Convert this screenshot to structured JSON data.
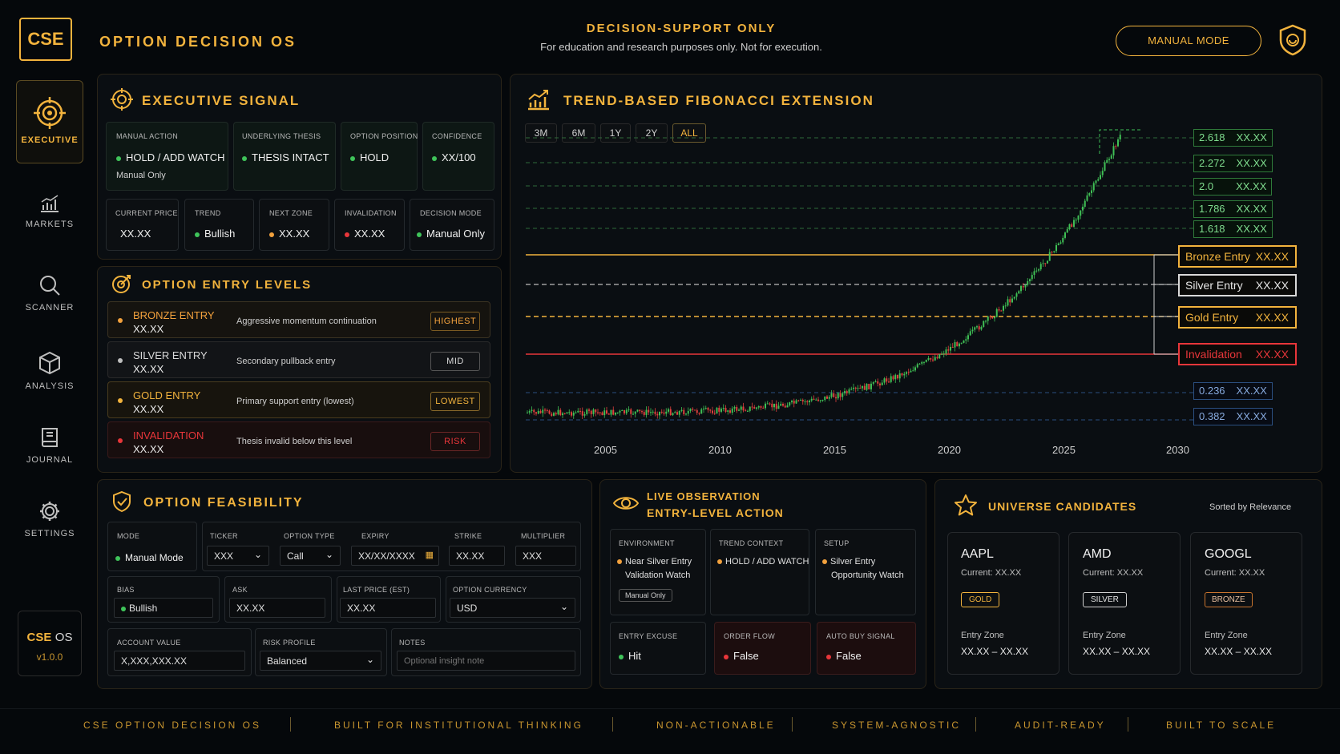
{
  "header": {
    "logo": "CSE",
    "app_title": "OPTION DECISION OS",
    "banner_title": "DECISION-SUPPORT ONLY",
    "banner_sub": "For education and research purposes only. Not for execution.",
    "mode_button": "MANUAL MODE"
  },
  "sidebar": {
    "items": [
      {
        "label": "EXECUTIVE",
        "icon": "target-icon"
      },
      {
        "label": "MARKETS",
        "icon": "bar-chart-icon"
      },
      {
        "label": "SCANNER",
        "icon": "search-icon"
      },
      {
        "label": "ANALYSIS",
        "icon": "cube-icon"
      },
      {
        "label": "JOURNAL",
        "icon": "book-icon"
      },
      {
        "label": "SETTINGS",
        "icon": "gear-icon"
      }
    ],
    "brand": "CSE",
    "brand_os": "OS",
    "version": "v1.0.0"
  },
  "executive": {
    "title": "EXECUTIVE SIGNAL",
    "manual_action": {
      "label": "MANUAL ACTION",
      "value": "HOLD / ADD WATCH",
      "sub": "Manual Only"
    },
    "thesis": {
      "label": "UNDERLYING THESIS",
      "value": "THESIS INTACT"
    },
    "position": {
      "label": "OPTION POSITION",
      "value": "HOLD"
    },
    "confidence": {
      "label": "CONFIDENCE",
      "value": "XX/100"
    },
    "current_price": {
      "label": "CURRENT PRICE",
      "value": "XX.XX"
    },
    "trend": {
      "label": "TREND",
      "value": "Bullish"
    },
    "next_zone": {
      "label": "NEXT ZONE",
      "value": "XX.XX"
    },
    "invalidation": {
      "label": "INVALIDATION",
      "value": "XX.XX"
    },
    "decision_mode": {
      "label": "DECISION MODE",
      "value": "Manual Only"
    }
  },
  "entry_levels": {
    "title": "OPTION ENTRY LEVELS",
    "items": [
      {
        "name": "BRONZE ENTRY",
        "value": "XX.XX",
        "desc": "Aggressive momentum continuation",
        "badge": "HIGHEST",
        "color": "#f2a13d"
      },
      {
        "name": "SILVER ENTRY",
        "value": "XX.XX",
        "desc": "Secondary pullback entry",
        "badge": "MID",
        "color": "#d9d9d9"
      },
      {
        "name": "GOLD ENTRY",
        "value": "XX.XX",
        "desc": "Primary support entry (lowest)",
        "badge": "LOWEST",
        "color": "#f2b33d"
      },
      {
        "name": "INVALIDATION",
        "value": "XX.XX",
        "desc": "Thesis invalid below this level",
        "badge": "RISK",
        "color": "#e8363a"
      }
    ]
  },
  "chart": {
    "title": "TREND-BASED FIBONACCI EXTENSION",
    "timeframes": [
      "3M",
      "6M",
      "1Y",
      "2Y",
      "ALL"
    ],
    "active_timeframe": "ALL",
    "fib_levels": [
      {
        "ratio": "2.618",
        "value": "XX.XX"
      },
      {
        "ratio": "2.272",
        "value": "XX.XX"
      },
      {
        "ratio": "2.0",
        "value": "XX.XX"
      },
      {
        "ratio": "1.786",
        "value": "XX.XX"
      },
      {
        "ratio": "1.618",
        "value": "XX.XX"
      },
      {
        "ratio": "0.236",
        "value": "XX.XX"
      },
      {
        "ratio": "0.382",
        "value": "XX.XX"
      }
    ],
    "entry_levels": [
      {
        "name": "Bronze Entry",
        "value": "XX.XX"
      },
      {
        "name": "Silver Entry",
        "value": "XX.XX"
      },
      {
        "name": "Gold Entry",
        "value": "XX.XX"
      },
      {
        "name": "Invalidation",
        "value": "XX.XX"
      }
    ],
    "x_ticks": [
      "2005",
      "2010",
      "2015",
      "2020",
      "2025",
      "2030"
    ]
  },
  "feasibility": {
    "title": "OPTION FEASIBILITY",
    "mode": {
      "label": "MODE",
      "value": "Manual Mode"
    },
    "ticker": {
      "label": "TICKER",
      "value": "XXX"
    },
    "option_type": {
      "label": "OPTION TYPE",
      "value": "Call"
    },
    "expiry": {
      "label": "EXPIRY",
      "value": "XX/XX/XXXX"
    },
    "strike": {
      "label": "STRIKE",
      "value": "XX.XX"
    },
    "multiplier": {
      "label": "MULTIPLIER",
      "value": "XXX"
    },
    "bias": {
      "label": "BIAS",
      "value": "Bullish"
    },
    "ask": {
      "label": "ASK",
      "value": "XX.XX"
    },
    "last_price": {
      "label": "LAST PRICE (EST)",
      "value": "XX.XX"
    },
    "currency": {
      "label": "OPTION CURRENCY",
      "value": "USD"
    },
    "account_value": {
      "label": "ACCOUNT VALUE",
      "value": "X,XXX,XXX.XX"
    },
    "risk_profile": {
      "label": "RISK PROFILE",
      "value": "Balanced"
    },
    "notes": {
      "label": "NOTES",
      "placeholder": "Optional insight note"
    }
  },
  "observation": {
    "title1": "LIVE OBSERVATION",
    "title2": "ENTRY-LEVEL ACTION",
    "environment": {
      "label": "ENVIRONMENT",
      "line1": "Near Silver Entry",
      "line2": "Validation Watch",
      "tag": "Manual Only"
    },
    "trend_context": {
      "label": "TREND CONTEXT",
      "value": "HOLD / ADD WATCH"
    },
    "setup": {
      "label": "SETUP",
      "line1": "Silver Entry",
      "line2": "Opportunity Watch"
    },
    "entry_excuse": {
      "label": "ENTRY EXCUSE",
      "value": "Hit"
    },
    "order_flow": {
      "label": "ORDER FLOW",
      "value": "False"
    },
    "auto_buy": {
      "label": "AUTO BUY SIGNAL",
      "value": "False"
    }
  },
  "universe": {
    "title": "UNIVERSE CANDIDATES",
    "sort": "Sorted by Relevance",
    "cards": [
      {
        "ticker": "AAPL",
        "current": "Current: XX.XX",
        "tier": "GOLD",
        "zone_label": "Entry Zone",
        "zone": "XX.XX – XX.XX"
      },
      {
        "ticker": "AMD",
        "current": "Current: XX.XX",
        "tier": "SILVER",
        "zone_label": "Entry Zone",
        "zone": "XX.XX – XX.XX"
      },
      {
        "ticker": "GOOGL",
        "current": "Current: XX.XX",
        "tier": "BRONZE",
        "zone_label": "Entry Zone",
        "zone": "XX.XX – XX.XX"
      }
    ]
  },
  "footer": [
    "CSE OPTION DECISION OS",
    "BUILT FOR INSTITUTIONAL THINKING",
    "NON-ACTIONABLE",
    "SYSTEM-AGNOSTIC",
    "AUDIT-READY",
    "BUILT TO SCALE"
  ],
  "colors": {
    "accent": "#f2b33d",
    "positive": "#3fc45a",
    "negative": "#e8363a",
    "bronze": "#f2a13d"
  }
}
